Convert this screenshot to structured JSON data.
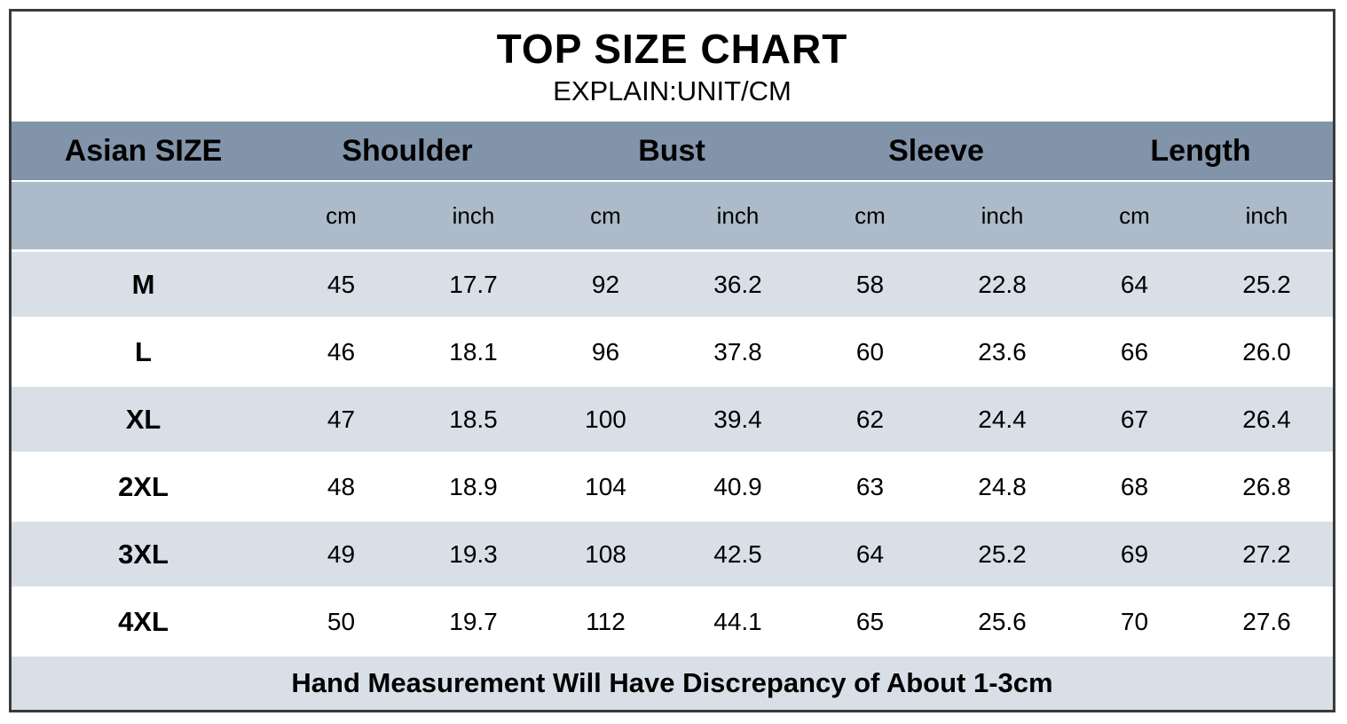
{
  "title": "TOP SIZE CHART",
  "subtitle": "EXPLAIN:UNIT/CM",
  "footer_note": "Hand Measurement Will Have Discrepancy of About 1-3cm",
  "colors": {
    "header_bg": "#8294aa",
    "units_bg": "#acbac9",
    "stripe_bg": "#d9dfe7",
    "row_white_bg": "#ffffff",
    "outer_border": "#3a3a3a",
    "text": "#000000"
  },
  "chart_data": {
    "type": "table",
    "corner_header": "Asian SIZE",
    "groups": [
      {
        "label": "Shoulder",
        "units": [
          "cm",
          "inch"
        ]
      },
      {
        "label": "Bust",
        "units": [
          "cm",
          "inch"
        ]
      },
      {
        "label": "Sleeve",
        "units": [
          "cm",
          "inch"
        ]
      },
      {
        "label": "Length",
        "units": [
          "cm",
          "inch"
        ]
      }
    ],
    "rows": [
      {
        "size": "M",
        "values": [
          "45",
          "17.7",
          "92",
          "36.2",
          "58",
          "22.8",
          "64",
          "25.2"
        ]
      },
      {
        "size": "L",
        "values": [
          "46",
          "18.1",
          "96",
          "37.8",
          "60",
          "23.6",
          "66",
          "26.0"
        ]
      },
      {
        "size": "XL",
        "values": [
          "47",
          "18.5",
          "100",
          "39.4",
          "62",
          "24.4",
          "67",
          "26.4"
        ]
      },
      {
        "size": "2XL",
        "values": [
          "48",
          "18.9",
          "104",
          "40.9",
          "63",
          "24.8",
          "68",
          "26.8"
        ]
      },
      {
        "size": "3XL",
        "values": [
          "49",
          "19.3",
          "108",
          "42.5",
          "64",
          "25.2",
          "69",
          "27.2"
        ]
      },
      {
        "size": "4XL",
        "values": [
          "50",
          "19.7",
          "112",
          "44.1",
          "65",
          "25.6",
          "70",
          "27.6"
        ]
      }
    ]
  }
}
